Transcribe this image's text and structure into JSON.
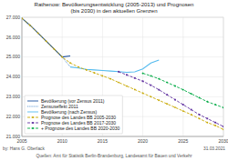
{
  "chart_data": {
    "type": "line",
    "title": "Rathenow: Bevölkerungsentwicklung (2005-2013) und Prognosen\n(bis 2030) in den aktuellen Grenzen",
    "xlim": [
      2005,
      2030
    ],
    "ylim": [
      21000,
      27000
    ],
    "xticks": [
      2005,
      2010,
      2015,
      2020,
      2025,
      2030
    ],
    "yticks": [
      {
        "value": 21000,
        "label": "21.000"
      },
      {
        "value": 22000,
        "label": "22.000"
      },
      {
        "value": 23000,
        "label": "23.000"
      },
      {
        "value": 24000,
        "label": "24.000"
      },
      {
        "value": 25000,
        "label": "25.000"
      },
      {
        "value": 26000,
        "label": "26.000"
      },
      {
        "value": 27000,
        "label": "27.000"
      }
    ],
    "grid": true,
    "legend": "lower left",
    "series": [
      {
        "name": "Bevölkerung (vor Zensus 2011)",
        "color": "#1a4f9e",
        "line_style": "solid",
        "x": [
          2005,
          2006,
          2007,
          2008,
          2009,
          2010,
          2011
        ],
        "values": [
          26950,
          26600,
          26200,
          25800,
          25400,
          25000,
          25050
        ]
      },
      {
        "name": "Zensuseffekt 2011",
        "color": "#4488cc",
        "line_style": "dotted",
        "x": [
          2010,
          2011
        ],
        "values": [
          25000,
          24500
        ]
      },
      {
        "name": "Bevölkerung (nach Zensus)",
        "color": "#55bbee",
        "line_style": "solid",
        "x": [
          2011,
          2012,
          2013,
          2014,
          2015,
          2016,
          2017,
          2018,
          2019,
          2020,
          2021,
          2022
        ],
        "values": [
          24500,
          24450,
          24380,
          24350,
          24320,
          24290,
          24260,
          24230,
          24250,
          24400,
          24700,
          24850
        ]
      },
      {
        "name": "Prognose des Landes BB 2005-2030",
        "color": "#c8a800",
        "line_style": "dashed",
        "marker": "circle",
        "x": [
          2005,
          2006,
          2007,
          2008,
          2009,
          2010,
          2011,
          2012,
          2013,
          2014,
          2015,
          2016,
          2017,
          2018,
          2019,
          2020,
          2021,
          2022,
          2023,
          2024,
          2025,
          2026,
          2027,
          2028,
          2029,
          2030
        ],
        "values": [
          26950,
          26600,
          26200,
          25800,
          25400,
          25000,
          24700,
          24500,
          24350,
          24200,
          24050,
          23900,
          23720,
          23540,
          23360,
          23180,
          23000,
          22820,
          22640,
          22460,
          22280,
          22100,
          21900,
          21700,
          21550,
          21350
        ]
      },
      {
        "name": "Prognose des Landes BB 2017-2030",
        "color": "#6030a0",
        "line_style": "dashed",
        "marker": "square",
        "x": [
          2017,
          2018,
          2019,
          2020,
          2021,
          2022,
          2023,
          2024,
          2025,
          2026,
          2027,
          2028,
          2029,
          2030
        ],
        "values": [
          24260,
          24100,
          23940,
          23780,
          23580,
          23350,
          23100,
          22850,
          22600,
          22350,
          22100,
          21900,
          21700,
          21500
        ]
      },
      {
        "name": "+ Prognose des Landes BB 2020-2030",
        "color": "#00aa44",
        "line_style": "dashed",
        "marker": "diamond",
        "x": [
          2020,
          2021,
          2022,
          2023,
          2024,
          2025,
          2026,
          2027,
          2028,
          2029,
          2030
        ],
        "values": [
          24180,
          24050,
          23900,
          23720,
          23540,
          23350,
          23150,
          22950,
          22750,
          22600,
          22450
        ]
      }
    ],
    "annotations": [
      "by: Hans G. Oberlack",
      "Quellen: Amt für Statistik Berlin-Brandenburg, Landesamt für Bauen und Verkehr",
      "31.03.2021"
    ]
  }
}
